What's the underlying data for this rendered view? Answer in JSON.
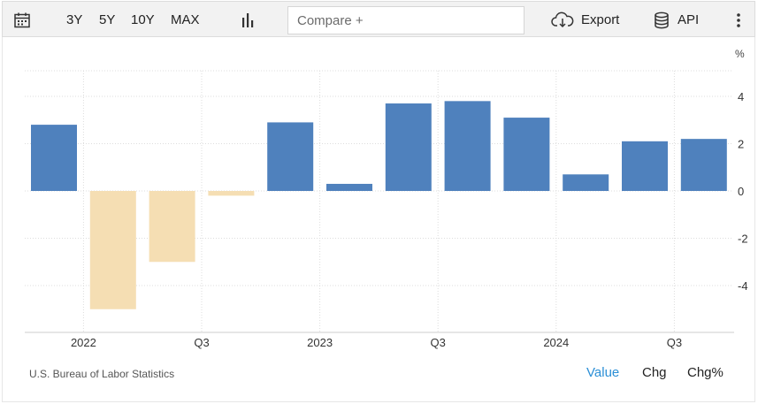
{
  "toolbar": {
    "ranges": [
      "3Y",
      "5Y",
      "10Y",
      "MAX"
    ],
    "compare_placeholder": "Compare +",
    "export_label": "Export",
    "api_label": "API",
    "icons": {
      "calendar": "calendar-icon",
      "chart_type": "bar-chart-icon",
      "export": "cloud-download-icon",
      "api": "database-icon",
      "menu": "more-vertical-icon"
    }
  },
  "footer": {
    "source": "U.S. Bureau of Labor Statistics",
    "value_label": "Value",
    "chg_label": "Chg",
    "chgpct_label": "Chg%"
  },
  "chart_data": {
    "type": "bar",
    "unit": "%",
    "categories": [
      "2021 Q4",
      "2022 Q1",
      "2022 Q2",
      "2022 Q3",
      "2022 Q4",
      "2023 Q1",
      "2023 Q2",
      "2023 Q3",
      "2023 Q4",
      "2024 Q1",
      "2024 Q2",
      "2024 Q3"
    ],
    "values": [
      2.8,
      -5.0,
      -3.0,
      -0.2,
      2.9,
      0.3,
      3.7,
      3.8,
      3.1,
      0.7,
      2.1,
      2.2
    ],
    "x_tick_labels": [
      "2022",
      "Q3",
      "2023",
      "Q3",
      "2024",
      "Q3"
    ],
    "y_ticks": [
      4,
      2,
      0,
      -2,
      -4
    ],
    "ylim": [
      -6,
      5
    ],
    "grid": true,
    "colors": {
      "positive": "#4f81bd",
      "negative": "#f5deb3",
      "grid": "#dddddd"
    }
  }
}
